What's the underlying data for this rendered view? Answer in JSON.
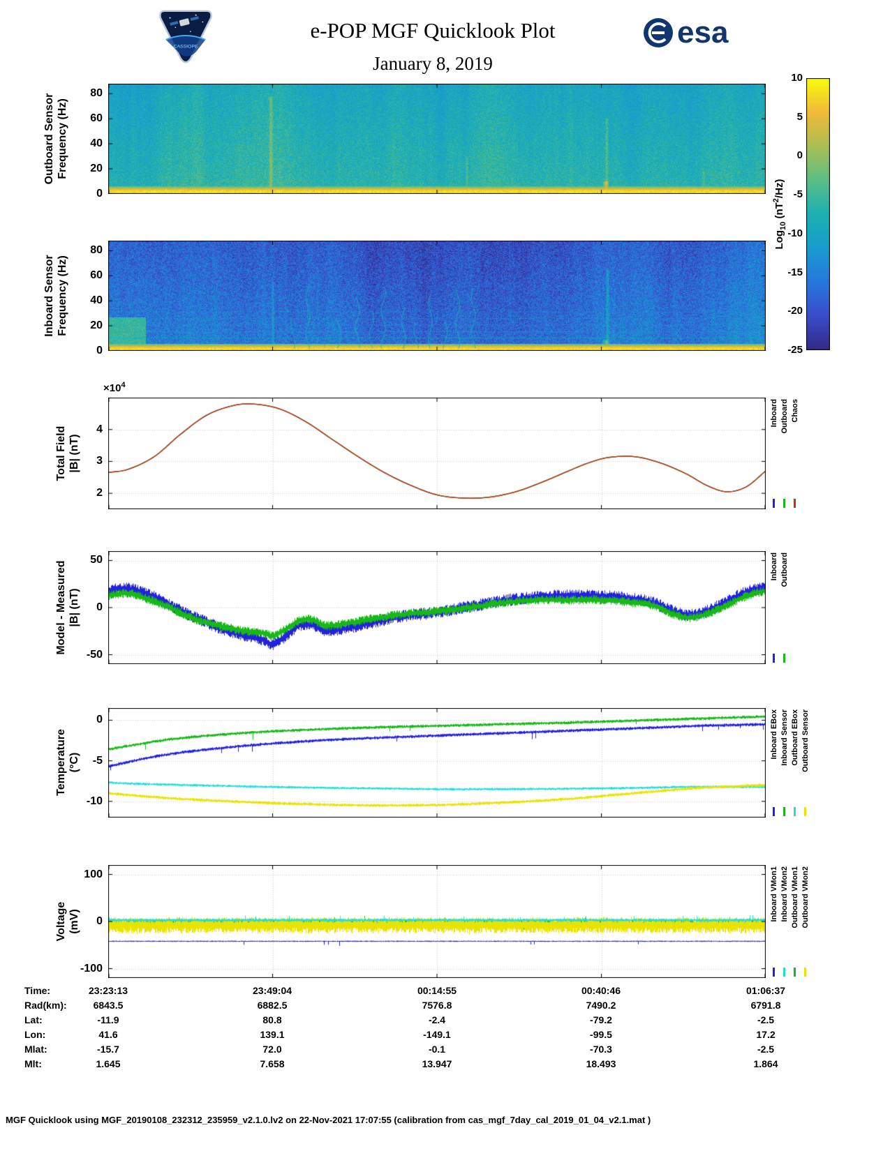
{
  "header": {
    "title": "e-POP MGF Quicklook Plot",
    "subtitle": "January 8, 2019",
    "patch_caption": "CASSIOPE",
    "esa_wordmark": "esa"
  },
  "colorbar": {
    "label_parts": {
      "pre": "Log",
      "sub": "10",
      "mid": " (nT",
      "sup": "2",
      "post": "/Hz)"
    },
    "tick_labels": [
      "10",
      "5",
      "0",
      "-5",
      "-10",
      "-15",
      "-20",
      "-25"
    ],
    "tick_values": [
      10,
      5,
      0,
      -5,
      -10,
      -15,
      -20,
      -25
    ],
    "range": [
      -25,
      10
    ]
  },
  "time_axis": {
    "tick_labels": [
      "23:23:13",
      "23:49:04",
      "00:14:55",
      "00:40:46",
      "01:06:37"
    ],
    "tick_positions": [
      0,
      0.25,
      0.5,
      0.75,
      1
    ]
  },
  "bottom_table": {
    "rows": [
      {
        "label": "Time:",
        "values": [
          "23:23:13",
          "23:49:04",
          "00:14:55",
          "00:40:46",
          "01:06:37"
        ]
      },
      {
        "label": "Rad(km):",
        "values": [
          "6843.5",
          "6882.5",
          "7576.8",
          "7490.2",
          "6791.8"
        ]
      },
      {
        "label": "Lat:",
        "values": [
          "-11.9",
          "80.8",
          "-2.4",
          "-79.2",
          "-2.5"
        ]
      },
      {
        "label": "Lon:",
        "values": [
          "41.6",
          "139.1",
          "-149.1",
          "-99.5",
          "17.2"
        ]
      },
      {
        "label": "Mlat:",
        "values": [
          "-15.7",
          "72.0",
          "-0.1",
          "-70.3",
          "-2.5"
        ]
      },
      {
        "label": "Mlt:",
        "values": [
          "1.645",
          "7.658",
          "13.947",
          "18.493",
          "1.864"
        ]
      }
    ]
  },
  "footer": {
    "text": "MGF Quicklook using MGF_20190108_232312_235959_v2.1.0.lv2 on 22-Nov-2021 17:07:55 (calibration from cas_mgf_7day_cal_2019_01_04_v2.1.mat )"
  },
  "chart_data": [
    {
      "id": "spec-outboard",
      "type": "heatmap",
      "ylabel_line1": "Outboard Sensor",
      "ylabel_line2": "Frequency (Hz)",
      "ytick_labels": [
        "0",
        "20",
        "40",
        "60",
        "80"
      ],
      "ytick_values": [
        0,
        20,
        40,
        60,
        80
      ],
      "ylim": [
        0,
        88
      ],
      "value_range": [
        -25,
        10
      ],
      "seed": 7,
      "background": {
        "bottom": -7.2,
        "top": -10.2,
        "noise": 3.2,
        "colvar": 1.1
      },
      "bottom_band": {
        "freq": 3,
        "value": 7,
        "noise": 2.2
      },
      "horizontal_lines": [
        {
          "f": 7,
          "value": -4,
          "alpha": 0.25
        },
        {
          "f": 12,
          "value": -5,
          "alpha": 0.2
        }
      ],
      "vertical_streaks": [
        {
          "x": 0.247,
          "width": 0.004,
          "boost": 6,
          "fmax": 78
        },
        {
          "x": 0.545,
          "width": 0.003,
          "boost": 4,
          "fmax": 30
        },
        {
          "x": 0.756,
          "width": 0.006,
          "boost": 9,
          "fmax": 10
        },
        {
          "x": 0.758,
          "width": 0.003,
          "boost": 5,
          "fmax": 60
        },
        {
          "x": 0.905,
          "width": 0.003,
          "boost": 4,
          "fmax": 18
        }
      ]
    },
    {
      "id": "spec-inboard",
      "type": "heatmap",
      "ylabel_line1": "Inboard Sensor",
      "ylabel_line2": "Frequency (Hz)",
      "ytick_labels": [
        "0",
        "20",
        "40",
        "60",
        "80"
      ],
      "ytick_values": [
        0,
        20,
        40,
        60,
        80
      ],
      "ylim": [
        0,
        88
      ],
      "value_range": [
        -25,
        10
      ],
      "seed": 11,
      "background": {
        "bottom": -15,
        "top": -18.5,
        "noise": 4.5,
        "colvar": 1.4
      },
      "bottom_band": {
        "freq": 2.5,
        "value": 7,
        "noise": 2.2
      },
      "left_patch": {
        "x_end": 0.057,
        "f_min": 3,
        "f_max": 27,
        "value": -5.5,
        "noise": 2.5
      },
      "horizontal_lines": [
        {
          "f": 10.5,
          "value": -9,
          "alpha": 0.5
        },
        {
          "f": 15.5,
          "value": -9.5,
          "alpha": 0.45
        },
        {
          "f": 21,
          "value": -10,
          "alpha": 0.4
        },
        {
          "f": 26,
          "value": -10.5,
          "alpha": 0.35
        },
        {
          "f": 31.5,
          "value": -11.5,
          "alpha": 0.3
        },
        {
          "f": 42,
          "value": -13,
          "alpha": 0.22
        },
        {
          "f": 52,
          "value": -13.5,
          "alpha": 0.18
        }
      ],
      "vertical_streaks": [
        {
          "x": 0.756,
          "width": 0.006,
          "boost": 10,
          "fmax": 9
        },
        {
          "x": 0.759,
          "width": 0.003,
          "boost": 6,
          "fmax": 65
        },
        {
          "x": 0.25,
          "width": 0.0025,
          "boost": 5,
          "fmax": 55
        }
      ],
      "wisps": {
        "x_start": 0.27,
        "x_end": 0.57,
        "count": 13,
        "value": -7.5
      },
      "traces": [
        {
          "x0": 0.055,
          "f0": 16,
          "x1": 0.3,
          "f1": 50,
          "alpha": 0.3
        },
        {
          "x0": 0.1,
          "f0": 12,
          "x1": 0.34,
          "f1": 40,
          "alpha": 0.22
        },
        {
          "x0": 0.62,
          "f0": 26,
          "x1": 0.97,
          "f1": 54,
          "alpha": 0.25
        },
        {
          "x0": 0.75,
          "f0": 10,
          "x1": 0.99,
          "f1": 38,
          "alpha": 0.2
        }
      ]
    },
    {
      "id": "total-field",
      "type": "line",
      "ylabel_line1": "Total Field",
      "ylabel_line2": "|B| (nT)",
      "ytick_labels": [
        "2",
        "3",
        "4"
      ],
      "ytick_values": [
        2,
        3,
        4
      ],
      "ylim": [
        1.5,
        5.0
      ],
      "seed": 3,
      "exp_label": {
        "prefix": "×10",
        "exp": "4"
      },
      "series": [
        {
          "name": "Inboard",
          "color": "#2222dd",
          "z": 1,
          "width": 1.2,
          "x": [
            0,
            0.03,
            0.07,
            0.11,
            0.15,
            0.19,
            0.22,
            0.26,
            0.3,
            0.34,
            0.38,
            0.42,
            0.46,
            0.5,
            0.54,
            0.58,
            0.62,
            0.66,
            0.7,
            0.73,
            0.76,
            0.8,
            0.84,
            0.88,
            0.91,
            0.94,
            0.97,
            1
          ],
          "y": [
            2.65,
            2.75,
            3.15,
            3.85,
            4.45,
            4.75,
            4.8,
            4.65,
            4.25,
            3.7,
            3.15,
            2.65,
            2.25,
            1.95,
            1.85,
            1.88,
            2.05,
            2.35,
            2.7,
            2.95,
            3.12,
            3.15,
            2.95,
            2.6,
            2.25,
            2.05,
            2.2,
            2.7
          ]
        },
        {
          "name": "Outboard",
          "color": "#18b818",
          "z": 2,
          "width": 1.2,
          "x": [
            0,
            0.03,
            0.07,
            0.11,
            0.15,
            0.19,
            0.22,
            0.26,
            0.3,
            0.34,
            0.38,
            0.42,
            0.46,
            0.5,
            0.54,
            0.58,
            0.62,
            0.66,
            0.7,
            0.73,
            0.76,
            0.8,
            0.84,
            0.88,
            0.91,
            0.94,
            0.97,
            1
          ],
          "y": [
            2.65,
            2.75,
            3.15,
            3.85,
            4.45,
            4.75,
            4.8,
            4.65,
            4.25,
            3.7,
            3.15,
            2.65,
            2.25,
            1.95,
            1.85,
            1.88,
            2.05,
            2.35,
            2.7,
            2.95,
            3.12,
            3.15,
            2.95,
            2.6,
            2.25,
            2.05,
            2.2,
            2.7
          ]
        },
        {
          "name": "Chaos",
          "color": "#bf360c",
          "z": 3,
          "width": 1.4,
          "x": [
            0,
            0.03,
            0.07,
            0.11,
            0.15,
            0.19,
            0.22,
            0.26,
            0.3,
            0.34,
            0.38,
            0.42,
            0.46,
            0.5,
            0.54,
            0.58,
            0.62,
            0.66,
            0.7,
            0.73,
            0.76,
            0.8,
            0.84,
            0.88,
            0.91,
            0.94,
            0.97,
            1
          ],
          "y": [
            2.65,
            2.75,
            3.15,
            3.85,
            4.45,
            4.75,
            4.8,
            4.65,
            4.25,
            3.7,
            3.15,
            2.65,
            2.25,
            1.95,
            1.85,
            1.88,
            2.05,
            2.35,
            2.7,
            2.95,
            3.12,
            3.15,
            2.95,
            2.6,
            2.25,
            2.05,
            2.2,
            2.7
          ]
        }
      ]
    },
    {
      "id": "model-measured",
      "type": "line",
      "ylabel_line1": "Model - Measured",
      "ylabel_line2": "|B| (nT)",
      "ytick_labels": [
        "-50",
        "0",
        "50"
      ],
      "ytick_values": [
        -50,
        0,
        50
      ],
      "ylim": [
        -60,
        60
      ],
      "seed": 4,
      "series": [
        {
          "name": "Inboard",
          "color": "#2222dd",
          "z": 1,
          "band": 6,
          "x": [
            0,
            0.03,
            0.06,
            0.09,
            0.12,
            0.15,
            0.18,
            0.21,
            0.235,
            0.25,
            0.27,
            0.29,
            0.31,
            0.33,
            0.36,
            0.4,
            0.45,
            0.5,
            0.55,
            0.6,
            0.65,
            0.7,
            0.75,
            0.79,
            0.83,
            0.86,
            0.885,
            0.91,
            0.94,
            0.97,
            1
          ],
          "y": [
            18,
            20,
            14,
            4,
            -7,
            -16,
            -24,
            -30,
            -34,
            -39,
            -30,
            -19,
            -18,
            -24,
            -22,
            -16,
            -9,
            -5,
            1,
            7,
            11,
            13,
            12,
            10,
            5,
            -4,
            -8,
            -4,
            6,
            16,
            22
          ]
        },
        {
          "name": "Outboard",
          "color": "#18b818",
          "z": 2,
          "band": 4.5,
          "x": [
            0,
            0.03,
            0.06,
            0.09,
            0.12,
            0.15,
            0.18,
            0.21,
            0.235,
            0.25,
            0.27,
            0.29,
            0.31,
            0.33,
            0.36,
            0.4,
            0.45,
            0.5,
            0.55,
            0.6,
            0.65,
            0.7,
            0.75,
            0.79,
            0.83,
            0.86,
            0.885,
            0.91,
            0.94,
            0.97,
            1
          ],
          "y": [
            13,
            15,
            9,
            1,
            -9,
            -16,
            -21,
            -25,
            -27,
            -30,
            -23,
            -14,
            -13,
            -19,
            -17,
            -12,
            -7,
            -4,
            0,
            5,
            8,
            8,
            8,
            6,
            2,
            -7,
            -11,
            -7,
            2,
            12,
            18
          ]
        }
      ]
    },
    {
      "id": "temperature",
      "type": "line",
      "ylabel_line1": "Temperature",
      "ylabel_line2": "(°C)",
      "ytick_labels": [
        "0",
        "-5",
        "-10"
      ],
      "ytick_values": [
        0,
        -5,
        -10
      ],
      "ylim": [
        -12,
        1.5
      ],
      "seed": 5,
      "series": [
        {
          "name": "Inboard EBox",
          "color": "#2222dd",
          "z": 2,
          "band": 0.18,
          "spike_prob": 0.01,
          "spike_amp": 0.8,
          "spike_dir": -1,
          "x": [
            0,
            0.05,
            0.1,
            0.2,
            0.3,
            0.4,
            0.5,
            0.6,
            0.7,
            0.8,
            0.9,
            1
          ],
          "y": [
            -5.7,
            -4.8,
            -4.1,
            -3.2,
            -2.6,
            -2.2,
            -1.9,
            -1.6,
            -1.3,
            -1.0,
            -0.7,
            -0.5
          ]
        },
        {
          "name": "Inboard Sensor",
          "color": "#18b818",
          "z": 1,
          "band": 0.18,
          "spike_prob": 0.01,
          "spike_amp": 0.8,
          "spike_dir": -1,
          "x": [
            0,
            0.05,
            0.1,
            0.2,
            0.3,
            0.4,
            0.5,
            0.6,
            0.7,
            0.8,
            0.9,
            1
          ],
          "y": [
            -3.6,
            -2.9,
            -2.3,
            -1.6,
            -1.2,
            -0.9,
            -0.7,
            -0.5,
            -0.3,
            -0.05,
            0.2,
            0.45
          ]
        },
        {
          "name": "Outboard EBox",
          "color": "#22dddd",
          "z": 3,
          "band": 0.15,
          "x": [
            0,
            0.05,
            0.1,
            0.2,
            0.3,
            0.4,
            0.5,
            0.6,
            0.7,
            0.8,
            0.9,
            1
          ],
          "y": [
            -7.7,
            -7.85,
            -7.95,
            -8.15,
            -8.3,
            -8.4,
            -8.5,
            -8.5,
            -8.45,
            -8.35,
            -8.2,
            -8.25
          ]
        },
        {
          "name": "Outboard Sensor",
          "color": "#e8e300",
          "z": 4,
          "band": 0.18,
          "x": [
            0,
            0.05,
            0.1,
            0.2,
            0.3,
            0.4,
            0.5,
            0.6,
            0.7,
            0.8,
            0.9,
            1
          ],
          "y": [
            -9.0,
            -9.35,
            -9.65,
            -10.05,
            -10.35,
            -10.5,
            -10.45,
            -10.15,
            -9.7,
            -9.0,
            -8.35,
            -8.0
          ]
        }
      ]
    },
    {
      "id": "voltage",
      "type": "line",
      "ylabel_line1": "Voltage",
      "ylabel_line2": "(mV)",
      "ytick_labels": [
        "100",
        "0",
        "-100"
      ],
      "ytick_values": [
        100,
        0,
        -100
      ],
      "ylim": [
        -120,
        120
      ],
      "seed": 6,
      "series": [
        {
          "name": "Inboard VMon1",
          "color": "#2222dd",
          "z": 4,
          "band": 1.2,
          "spike_prob": 0.008,
          "spike_amp": 10,
          "spike_dir": -1,
          "x": [
            0,
            1
          ],
          "y": [
            -42,
            -42
          ]
        },
        {
          "name": "Inboard VMon2",
          "color": "#22dddd",
          "z": 3,
          "band": 3,
          "spike_prob": 0.02,
          "spike_amp": 8,
          "spike_dir": 1,
          "x": [
            0,
            1
          ],
          "y": [
            3,
            3
          ]
        },
        {
          "name": "Outboard VMon1",
          "color": "#18b818",
          "z": 1,
          "band": 8,
          "spike_prob": 0.015,
          "spike_amp": 14,
          "spike_dir": 0,
          "x": [
            0,
            1
          ],
          "y": [
            -4,
            -4
          ]
        },
        {
          "name": "Outboard VMon2",
          "color": "#e8e300",
          "z": 2,
          "band": 16,
          "spike_prob": 0.01,
          "spike_amp": 10,
          "spike_dir": 0,
          "x": [
            0,
            1
          ],
          "y": [
            -8,
            -8
          ]
        }
      ]
    }
  ]
}
